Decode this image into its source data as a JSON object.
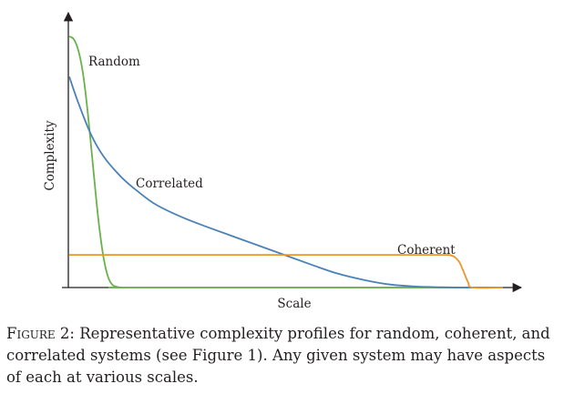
{
  "chart_data": {
    "type": "line",
    "xlabel": "Scale",
    "ylabel": "Complexity",
    "x_ticks": "none",
    "y_ticks": "none",
    "legend": "none (curves labeled directly)",
    "grid": false,
    "series": [
      {
        "name": "Random",
        "color": "#6ab04c",
        "x": [
          0,
          0.01,
          0.02,
          0.03,
          0.04,
          0.05,
          0.06,
          0.07,
          0.08,
          0.09,
          0.1,
          0.11,
          0.12,
          0.14,
          0.16,
          1.0
        ],
        "y": [
          1.0,
          0.99,
          0.95,
          0.87,
          0.74,
          0.57,
          0.39,
          0.23,
          0.11,
          0.04,
          0.01,
          0.003,
          0.0,
          0.0,
          0.0,
          0.0
        ]
      },
      {
        "name": "Correlated",
        "color": "#4a82b8",
        "x": [
          0,
          0.02,
          0.05,
          0.08,
          0.12,
          0.16,
          0.2,
          0.26,
          0.32,
          0.4,
          0.48,
          0.56,
          0.62,
          0.68,
          0.74,
          0.8,
          0.86,
          0.92,
          1.0
        ],
        "y": [
          0.84,
          0.74,
          0.61,
          0.52,
          0.44,
          0.38,
          0.33,
          0.28,
          0.24,
          0.19,
          0.14,
          0.09,
          0.055,
          0.03,
          0.012,
          0.004,
          0.001,
          0.0,
          0.0
        ]
      },
      {
        "name": "Coherent",
        "color": "#e8962e",
        "x": [
          0,
          0.1,
          0.3,
          0.5,
          0.7,
          0.86,
          0.88,
          0.89,
          0.9,
          0.91,
          0.92,
          0.93,
          1.0
        ],
        "y": [
          0.13,
          0.13,
          0.13,
          0.13,
          0.13,
          0.13,
          0.128,
          0.12,
          0.1,
          0.06,
          0.02,
          0.0,
          0.0
        ]
      }
    ]
  },
  "caption": {
    "figure_label": "Figure 2:",
    "text": "Representative complexity profiles for random, coherent, and correlated systems (see Figure 1). Any given system may have aspects of each at various scales."
  }
}
